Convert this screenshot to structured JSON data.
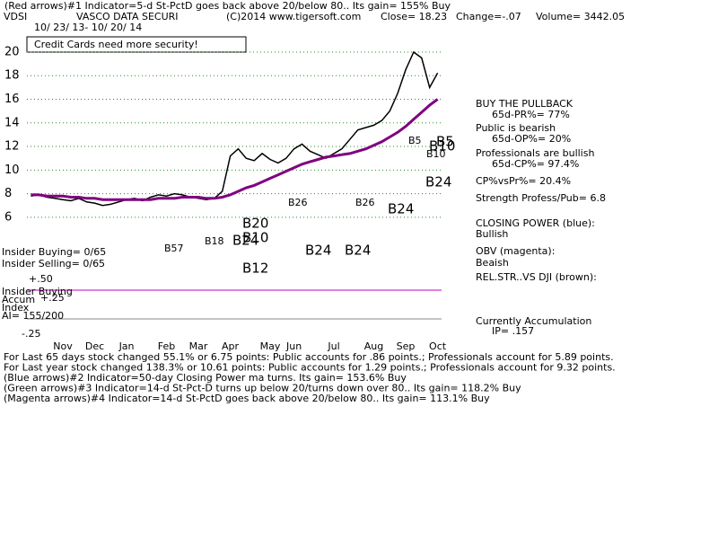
{
  "chart_data": {
    "type": "line",
    "header": {
      "line1": "(Red arrows)#1 Indicator=5-d St-PctD goes back above 20/below 80.. Its gain= 155% Buy",
      "ticker": "VDSI",
      "company": "VASCO DATA SECURI",
      "copyright": "(C)2014 www.tigersoft.com",
      "close": "Close= 18.23",
      "change": "Change=-.07",
      "volume": "Volume= 3442.05",
      "dates": "10/ 23/ 13- 10/ 20/ 14",
      "headline": "Credit Cards need more security!"
    },
    "categories": [
      null,
      null,
      null,
      null,
      "Nov",
      null,
      null,
      null,
      "Dec",
      null,
      null,
      null,
      "Jan",
      null,
      null,
      null,
      null,
      "Feb",
      null,
      null,
      null,
      "Mar",
      null,
      null,
      null,
      "Apr",
      null,
      null,
      null,
      null,
      "May",
      null,
      null,
      "Jun",
      null,
      null,
      null,
      null,
      "Jul",
      null,
      null,
      null,
      null,
      "Aug",
      null,
      null,
      null,
      "Sep",
      null,
      null,
      null,
      "Oct"
    ],
    "series": [
      {
        "name": "Price",
        "color": "#000000",
        "values": [
          7.8,
          7.9,
          7.7,
          7.6,
          7.5,
          7.4,
          7.6,
          7.3,
          7.2,
          7.0,
          7.1,
          7.3,
          7.5,
          7.6,
          7.4,
          7.7,
          7.9,
          7.8,
          8.0,
          7.9,
          7.7,
          7.6,
          7.5,
          7.6,
          8.2,
          11.2,
          11.8,
          11.0,
          10.8,
          11.4,
          10.9,
          10.6,
          11.0,
          11.8,
          12.2,
          11.6,
          11.3,
          11.0,
          11.4,
          11.8,
          12.6,
          13.4,
          13.6,
          13.8,
          14.2,
          15.0,
          16.5,
          18.5,
          20.0,
          19.5,
          17.0,
          18.23
        ]
      },
      {
        "name": "65-day MA",
        "color": "#800080",
        "values": [
          7.9,
          7.9,
          7.8,
          7.8,
          7.8,
          7.7,
          7.7,
          7.6,
          7.6,
          7.5,
          7.5,
          7.5,
          7.5,
          7.5,
          7.5,
          7.5,
          7.6,
          7.6,
          7.6,
          7.7,
          7.7,
          7.7,
          7.6,
          7.6,
          7.7,
          7.9,
          8.2,
          8.5,
          8.7,
          9.0,
          9.3,
          9.6,
          9.9,
          10.2,
          10.5,
          10.7,
          10.9,
          11.1,
          11.2,
          11.3,
          11.4,
          11.6,
          11.8,
          12.1,
          12.4,
          12.8,
          13.2,
          13.7,
          14.3,
          14.9,
          15.5,
          16.0
        ]
      }
    ],
    "ylim": [
      5,
      22
    ],
    "yticks": [
      6,
      8,
      10,
      12,
      14,
      16,
      18,
      20
    ],
    "grid": true,
    "chart_labels": [
      "B5",
      "B10",
      "B24",
      "B26",
      "B26",
      "B24",
      "B24",
      "B24",
      "B20",
      "B10",
      "B12",
      "B18",
      "B57",
      "B24",
      "B10",
      "B5"
    ],
    "panel_labels": [
      "Insider Buying= 0/65",
      "Insider Selling= 0/65",
      "Insider Buying",
      "Accum",
      "Index",
      "AI= 155/200",
      "+.50",
      "+.25",
      "-.25"
    ],
    "right_notes": [
      "BUY THE PULLBACK",
      "65d-PR%= 77%",
      "Public is bearish",
      "65d-OP%= 20%",
      "Professionals are bullish",
      "65d-CP%= 97.4%",
      "CP%vsPr%=  20.4%",
      "Strength Profess/Pub= 6.8",
      "CLOSING POWER (blue):",
      "Bullish",
      "OBV (magenta):",
      "Beaish",
      "REL.STR..VS DJI (brown):",
      "Currently Accumulation",
      "IP=  .157"
    ],
    "footer": [
      "For Last 65 days stock changed  55.1% or  6.75 points:  Public accounts for  .86 points.;  Professionals account for  5.89 points.",
      "For Last year stock changed  138.3% or  10.61 points:  Public accounts for  1.29 points.;  Professionals account for  9.32 points.",
      "(Blue arrows)#2 Indicator=50-day Closing Power ma turns. Its gain= 153.6% Buy",
      "(Green arrows)#3 Indicator=14-d St-Pct-D turns up below 20/turns down over 80.. Its gain= 118.2% Buy",
      "(Magenta arrows)#4 Indicator=14-d St-PctD goes back above 20/below 80.. Its gain= 113.1% Buy"
    ]
  }
}
